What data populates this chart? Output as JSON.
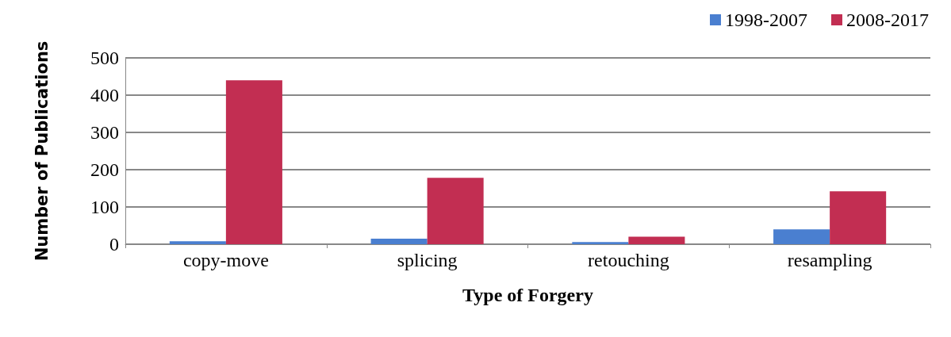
{
  "chart_data": {
    "type": "bar",
    "xlabel": "Type of Forgery",
    "ylabel": "Number of Publications",
    "categories": [
      "copy-move",
      "splicing",
      "retouching",
      "resampling"
    ],
    "series": [
      {
        "name": "1998-2007",
        "color": "#4a7fd0",
        "values": [
          8,
          15,
          6,
          40
        ]
      },
      {
        "name": "2008-2017",
        "color": "#c22e52",
        "values": [
          440,
          178,
          20,
          142
        ]
      }
    ],
    "ylim": [
      0,
      500
    ],
    "yticks": [
      0,
      100,
      200,
      300,
      400,
      500
    ],
    "grid": "y",
    "legend": "top right"
  }
}
